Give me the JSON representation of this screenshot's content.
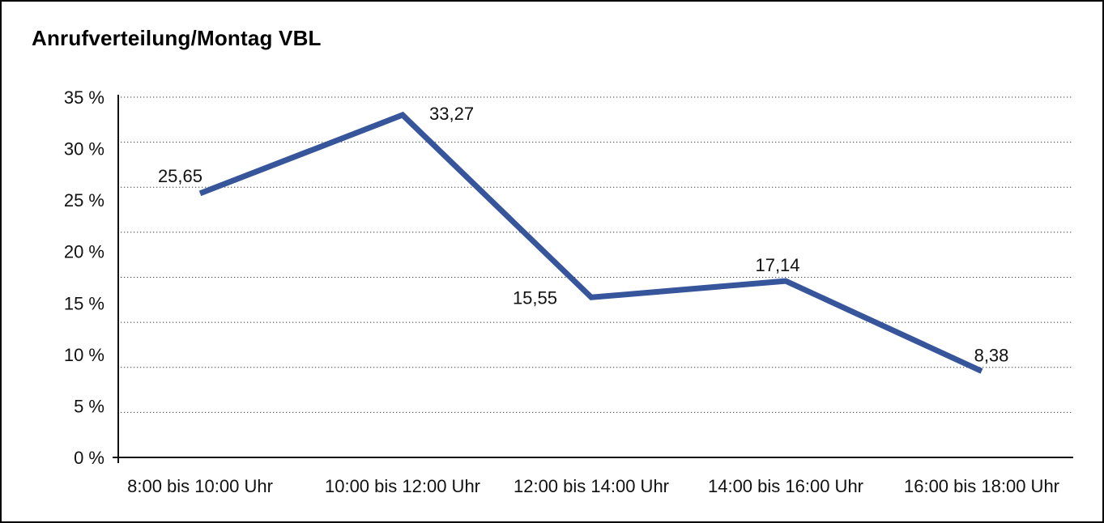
{
  "window": {
    "background": "#ffffff",
    "border_color": "#000000",
    "text_color": "#111111"
  },
  "chart_data": {
    "type": "line",
    "title": "Anrufverteilung/Montag VBL",
    "categories": [
      "8:00 bis 10:00 Uhr",
      "10:00 bis 12:00 Uhr",
      "12:00 bis 14:00 Uhr",
      "14:00 bis 16:00 Uhr",
      "16:00 bis 18:00 Uhr"
    ],
    "values": [
      25.65,
      33.27,
      15.55,
      17.14,
      8.38
    ],
    "value_labels": [
      "25,65",
      "33,27",
      "15,55",
      "17,14",
      "8,38"
    ],
    "xlabel": "",
    "ylabel": "",
    "ylim": [
      0,
      35
    ],
    "ytick_values": [
      35,
      30,
      25,
      20,
      15,
      10,
      5,
      0
    ],
    "ytick_labels": [
      "35 %",
      "30 %",
      "25 %",
      "20 %",
      "15 %",
      "10 %",
      "5 %",
      "0 %"
    ],
    "grid": "horizontal-dotted",
    "grid_intervals": 8,
    "legend": "none",
    "line_color": "#36559B"
  }
}
